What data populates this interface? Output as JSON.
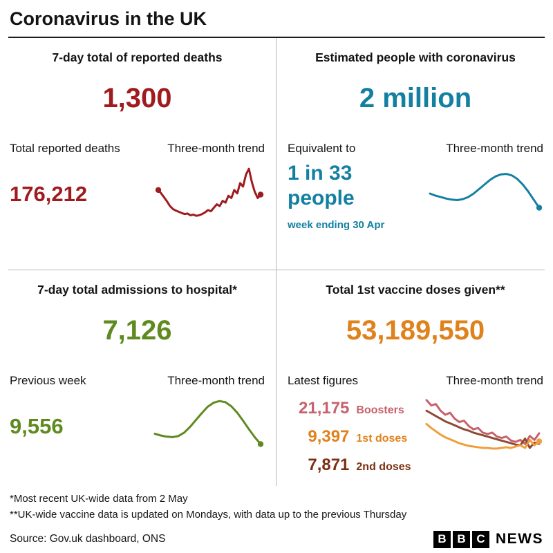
{
  "header": {
    "title": "Coronavirus in the UK"
  },
  "colors": {
    "red": "#9f1b1e",
    "teal": "#1380a1",
    "green": "#5f8a1f",
    "orange": "#e0821c"
  },
  "panels": {
    "deaths": {
      "heading": "7-day total of reported deaths",
      "value": "1,300",
      "sub_label": "Total reported deaths",
      "trend_label": "Three-month trend",
      "sub_value": "176,212"
    },
    "cases": {
      "heading": "Estimated people with coronavirus",
      "value": "2 million",
      "sub_label": "Equivalent to",
      "ratio_line1": "1 in 33",
      "ratio_line2": "people",
      "week_note": "week ending 30 Apr",
      "trend_label": "Three-month trend"
    },
    "hospital": {
      "heading": "7-day total admissions to hospital*",
      "value": "7,126",
      "sub_label": "Previous week",
      "trend_label": "Three-month trend",
      "sub_value": "9,556"
    },
    "vaccines": {
      "heading": "Total 1st vaccine doses given**",
      "value": "53,189,550",
      "sub_label": "Latest figures",
      "trend_label": "Three-month trend",
      "legend": [
        {
          "value": "21,175",
          "label": "Boosters",
          "color": "#c6626e"
        },
        {
          "value": "9,397",
          "label": "1st doses",
          "color": "#e0821c"
        },
        {
          "value": "7,871",
          "label": "2nd doses",
          "color": "#7c2f12"
        }
      ]
    }
  },
  "footnotes": [
    "*Most recent UK-wide data from 2 May",
    "**UK-wide vaccine data is updated on Mondays, with data up to the previous Thursday"
  ],
  "source": "Source: Gov.uk dashboard, ONS",
  "logo": {
    "blocks": [
      "B",
      "B",
      "C"
    ],
    "suffix": "NEWS"
  },
  "chart_data": [
    {
      "id": "deaths-trend",
      "type": "line",
      "title": "Three-month trend",
      "scale": "normalized 0-100 of period range, no axes shown (sparkline)",
      "stroke_width": 3,
      "series": [
        {
          "name": "Reported deaths 7-day total",
          "color": "#9f1b1e",
          "dots": [
            "start",
            "end"
          ],
          "values": [
            58,
            52,
            45,
            38,
            30,
            25,
            22,
            20,
            18,
            16,
            17,
            14,
            15,
            13,
            14,
            16,
            19,
            23,
            21,
            27,
            33,
            30,
            39,
            36,
            48,
            44,
            58,
            52,
            70,
            64,
            85,
            95,
            72,
            55,
            44,
            50
          ]
        }
      ]
    },
    {
      "id": "cases-trend",
      "type": "line",
      "title": "Three-month trend",
      "scale": "normalized 0-100 of period range, no axes shown (sparkline)",
      "stroke_width": 3,
      "series": [
        {
          "name": "Estimated people with coronavirus",
          "color": "#1380a1",
          "dots": [
            "end"
          ],
          "values": [
            52,
            48,
            45,
            42,
            40,
            39,
            41,
            45,
            52,
            61,
            70,
            79,
            86,
            90,
            91,
            88,
            81,
            70,
            56,
            40,
            24
          ]
        }
      ]
    },
    {
      "id": "hospital-trend",
      "type": "line",
      "title": "Three-month trend",
      "scale": "normalized 0-100 of period range, no axes shown (sparkline)",
      "stroke_width": 3,
      "series": [
        {
          "name": "Hospital admissions 7-day total",
          "color": "#5f8a1f",
          "dots": [
            "end"
          ],
          "values": [
            38,
            35,
            33,
            32,
            34,
            40,
            50,
            62,
            74,
            85,
            92,
            95,
            93,
            86,
            75,
            61,
            46,
            32,
            20
          ]
        }
      ]
    },
    {
      "id": "vaccines-trend",
      "type": "line",
      "title": "Three-month trend",
      "scale": "normalized 0-100 of period range, no axes shown (sparkline)",
      "stroke_width": 3,
      "series": [
        {
          "name": "Boosters",
          "color": "#c6626e",
          "dots": [],
          "values": [
            96,
            88,
            90,
            80,
            74,
            77,
            68,
            63,
            65,
            57,
            52,
            54,
            47,
            45,
            47,
            41,
            39,
            41,
            35,
            33,
            36,
            30,
            42,
            36,
            46
          ]
        },
        {
          "name": "2nd doses",
          "color": "#8d4a33",
          "dots": [],
          "values": [
            80,
            76,
            72,
            68,
            64,
            61,
            58,
            55,
            52,
            50,
            47,
            45,
            43,
            41,
            39,
            37,
            35,
            33,
            31,
            29,
            28,
            38,
            24,
            32,
            30
          ]
        },
        {
          "name": "1st doses",
          "color": "#f09e3c",
          "dots": [
            "end"
          ],
          "values": [
            60,
            54,
            49,
            44,
            40,
            37,
            34,
            31,
            29,
            27,
            26,
            25,
            24,
            24,
            23,
            23,
            24,
            25,
            24,
            26,
            28,
            24,
            36,
            28,
            34
          ]
        }
      ]
    }
  ]
}
